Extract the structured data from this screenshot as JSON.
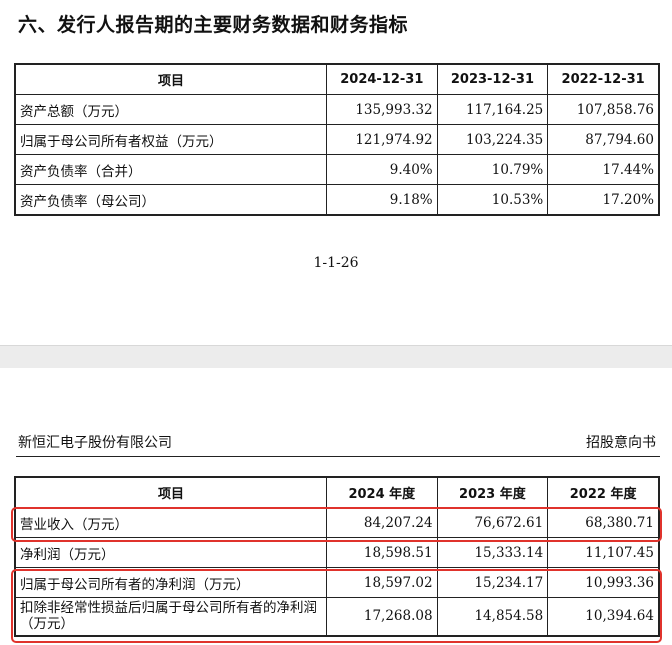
{
  "section_heading": "六、发行人报告期的主要财务数据和财务指标",
  "table1": {
    "headers": [
      "项目",
      "2024-12-31",
      "2023-12-31",
      "2022-12-31"
    ],
    "rows": [
      {
        "label": "资产总额（万元）",
        "v2024": "135,993.32",
        "v2023": "117,164.25",
        "v2022": "107,858.76"
      },
      {
        "label": "归属于母公司所有者权益（万元）",
        "v2024": "121,974.92",
        "v2023": "103,224.35",
        "v2022": "87,794.60"
      },
      {
        "label": "资产负债率（合并）",
        "v2024": "9.40%",
        "v2023": "10.79%",
        "v2022": "17.44%"
      },
      {
        "label": "资产负债率（母公司）",
        "v2024": "9.18%",
        "v2023": "10.53%",
        "v2022": "17.20%"
      }
    ]
  },
  "page_number": "1-1-26",
  "page_header": {
    "company": "新恒汇电子股份有限公司",
    "doc_type": "招股意向书"
  },
  "table2": {
    "headers": [
      "项目",
      "2024 年度",
      "2023 年度",
      "2022 年度"
    ],
    "rows": [
      {
        "label": "营业收入（万元）",
        "v2024": "84,207.24",
        "v2023": "76,672.61",
        "v2022": "68,380.71"
      },
      {
        "label": "净利润（万元）",
        "v2024": "18,598.51",
        "v2023": "15,333.14",
        "v2022": "11,107.45"
      },
      {
        "label": "归属于母公司所有者的净利润（万元）",
        "v2024": "18,597.02",
        "v2023": "15,234.17",
        "v2022": "10,993.36"
      },
      {
        "label": "扣除非经常性损益后归属于母公司所有者的净利润（万元）",
        "v2024": "17,268.08",
        "v2023": "14,854.58",
        "v2022": "10,394.64"
      }
    ]
  },
  "highlight_color": "#e0332c"
}
